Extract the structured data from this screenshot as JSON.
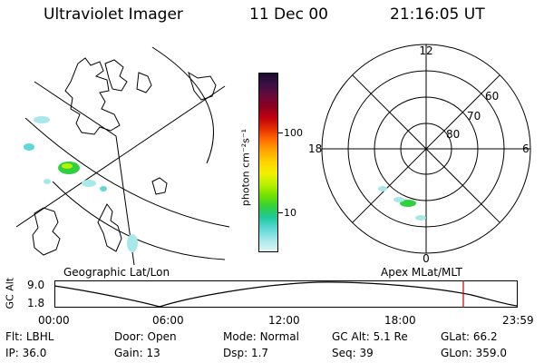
{
  "header": {
    "instrument": "Ultraviolet Imager",
    "date": "11 Dec 00",
    "time": "21:16:05 UT"
  },
  "colorbar": {
    "label": "photon cm⁻²s⁻¹",
    "tick_high": "100",
    "tick_low": "10",
    "colors": [
      "#1a0a2e",
      "#3d1045",
      "#6a0a3a",
      "#8f0020",
      "#c20010",
      "#e63000",
      "#ff7000",
      "#ffa800",
      "#ffd400",
      "#f0f000",
      "#b8f000",
      "#70e000",
      "#30d040",
      "#20c8a0",
      "#60d8d8",
      "#a8e8e8",
      "#e0f4f4"
    ]
  },
  "geo_panel": {
    "label": "Geographic Lat/Lon"
  },
  "polar_panel": {
    "label": "Apex MLat/MLT",
    "mlt_labels": {
      "top": "12",
      "left": "18",
      "right": "6",
      "bottom": "0"
    },
    "lat_labels": [
      "60",
      "70",
      "80"
    ]
  },
  "altitude_plot": {
    "ylabel": "GC Alt",
    "y_ticks": [
      "9.0",
      "1.8"
    ],
    "x_ticks": [
      "00:00",
      "06:00",
      "12:00",
      "18:00",
      "23:59"
    ],
    "marker_color": "#cc0000"
  },
  "status": {
    "row1": [
      {
        "label": "Flt:",
        "value": "LBHL"
      },
      {
        "label": "Door:",
        "value": "Open"
      },
      {
        "label": "Mode:",
        "value": "Normal"
      },
      {
        "label": "GC Alt:",
        "value": "5.1 Re"
      },
      {
        "label": "GLat:",
        "value": "66.2"
      }
    ],
    "row2": [
      {
        "label": "IP:",
        "value": "36.0"
      },
      {
        "label": "Gain:",
        "value": "13"
      },
      {
        "label": "Dsp:",
        "value": "1.7"
      },
      {
        "label": "Seq:",
        "value": "39"
      },
      {
        "label": "GLon:",
        "value": "359.0"
      }
    ]
  }
}
